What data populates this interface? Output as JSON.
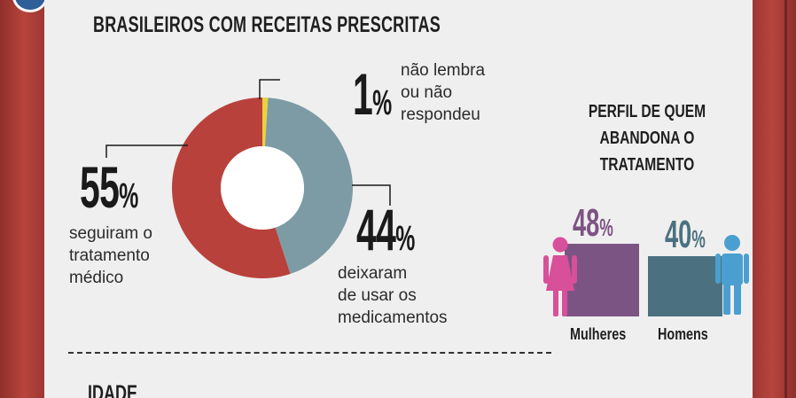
{
  "chart_data": [
    {
      "type": "pie",
      "title": "BRASILEIROS COM RECEITAS PRESCRITAS",
      "categories": [
        "não lembra ou não respondeu",
        "deixaram de usar os medicamentos",
        "seguiram o tratamento médico"
      ],
      "values": [
        1,
        44,
        55
      ],
      "labels": [
        {
          "value": "1",
          "unit": "%",
          "lines": [
            "não lembra",
            "ou não",
            "respondeu"
          ]
        },
        {
          "value": "44",
          "unit": "%",
          "lines": [
            "deixaram",
            "de usar os",
            "medicamentos"
          ]
        },
        {
          "value": "55",
          "unit": "%",
          "lines": [
            "seguiram o",
            "tratamento",
            "médico"
          ]
        }
      ],
      "colors": [
        "#e9d23d",
        "#7c9ba5",
        "#b9413b"
      ],
      "donut": true
    },
    {
      "type": "bar",
      "title": [
        "PERFIL DE QUEM",
        "ABANDONA O",
        "TRATAMENTO"
      ],
      "categories": [
        "Mulheres",
        "Homens"
      ],
      "values": [
        48,
        40
      ],
      "unit": "%",
      "colors": [
        "#7c5483",
        "#4b7180"
      ],
      "value_colors": [
        "#7c5483",
        "#4b7180"
      ],
      "icons": [
        "female-person-icon",
        "male-person-icon"
      ],
      "icon_colors": [
        "#d84f9a",
        "#4b9fd0"
      ]
    }
  ],
  "next_section": {
    "title": "IDADE"
  }
}
